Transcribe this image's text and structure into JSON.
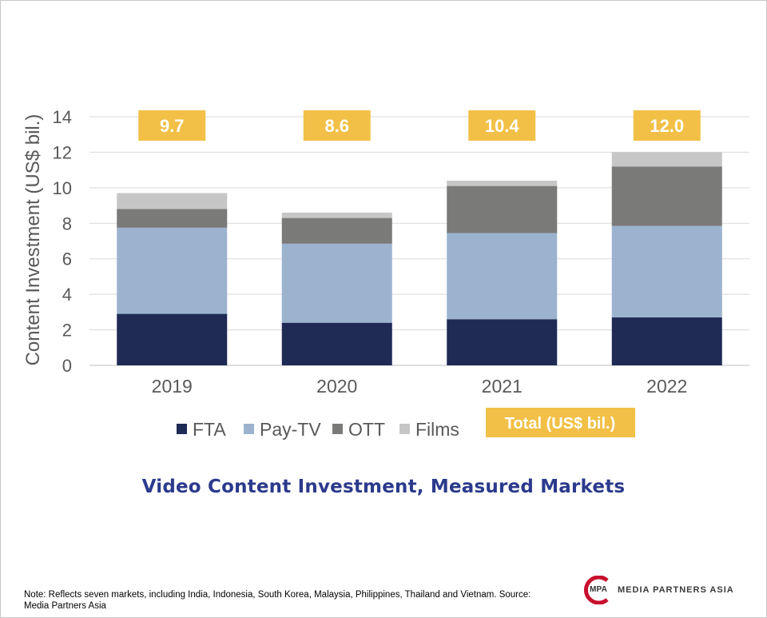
{
  "chart_data": {
    "type": "bar",
    "stacked": true,
    "categories": [
      "2019",
      "2020",
      "2021",
      "2022"
    ],
    "series": [
      {
        "name": "FTA",
        "color": "#1f2a55",
        "values": [
          2.9,
          2.4,
          2.6,
          2.7
        ]
      },
      {
        "name": "Pay-TV",
        "color": "#9bb3cf",
        "values": [
          4.85,
          4.45,
          4.85,
          5.15
        ]
      },
      {
        "name": "OTT",
        "color": "#7a7a78",
        "values": [
          1.05,
          1.45,
          2.65,
          3.35
        ]
      },
      {
        "name": "Films",
        "color": "#c6c6c6",
        "values": [
          0.9,
          0.3,
          0.3,
          0.8
        ]
      }
    ],
    "totals": [
      "9.7",
      "8.6",
      "10.4",
      "12.0"
    ],
    "total_label": "Total (US$ bil.)",
    "total_color": "#f2c046",
    "ylabel": "Content Investment (US$ bil.)",
    "ylim": [
      0,
      14
    ],
    "yticks": [
      0,
      2,
      4,
      6,
      8,
      10,
      12,
      14
    ],
    "grid": true,
    "legend_position": "bottom",
    "title": "Video Content Investment, Measured Markets"
  },
  "footnote": "Note: Reflects seven markets, including India, Indonesia, South Korea, Malaysia, Philippines, Thailand and Vietnam. Source: Media Partners Asia",
  "logo": {
    "abbr": "MPA",
    "name": "MEDIA PARTNERS ASIA",
    "accent": "#c8102e"
  }
}
